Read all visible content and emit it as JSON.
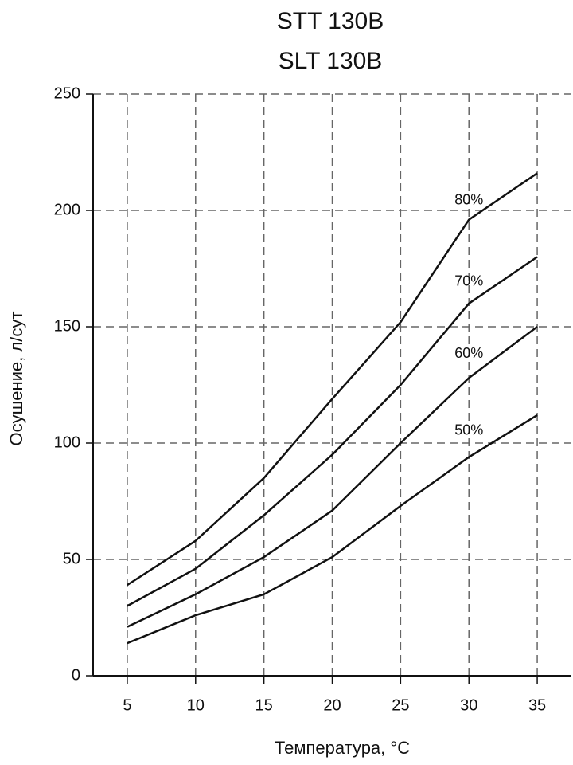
{
  "chart_data": {
    "type": "line",
    "title": "STT 130B",
    "subtitle": "SLT 130B",
    "x_label": "Температура, °C",
    "y_label": "Осушение, л/сут",
    "x": [
      5,
      10,
      15,
      20,
      25,
      30,
      35
    ],
    "series": [
      {
        "name": "80%",
        "color": "#111111",
        "values": [
          39,
          58,
          85,
          119,
          152,
          196,
          216
        ]
      },
      {
        "name": "70%",
        "color": "#111111",
        "values": [
          30,
          46,
          69,
          95,
          125,
          160,
          180
        ]
      },
      {
        "name": "60%",
        "color": "#111111",
        "values": [
          21,
          35,
          51,
          71,
          100,
          128,
          150
        ]
      },
      {
        "name": "50%",
        "color": "#111111",
        "values": [
          14,
          26,
          35,
          51,
          73,
          94,
          112
        ]
      }
    ],
    "xlim": [
      2.5,
      37.5
    ],
    "xticks": [
      5,
      10,
      15,
      20,
      25,
      30,
      35
    ],
    "ylim": [
      0,
      250
    ],
    "yticks": [
      0,
      50,
      100,
      150,
      200,
      250
    ],
    "grid": true
  }
}
